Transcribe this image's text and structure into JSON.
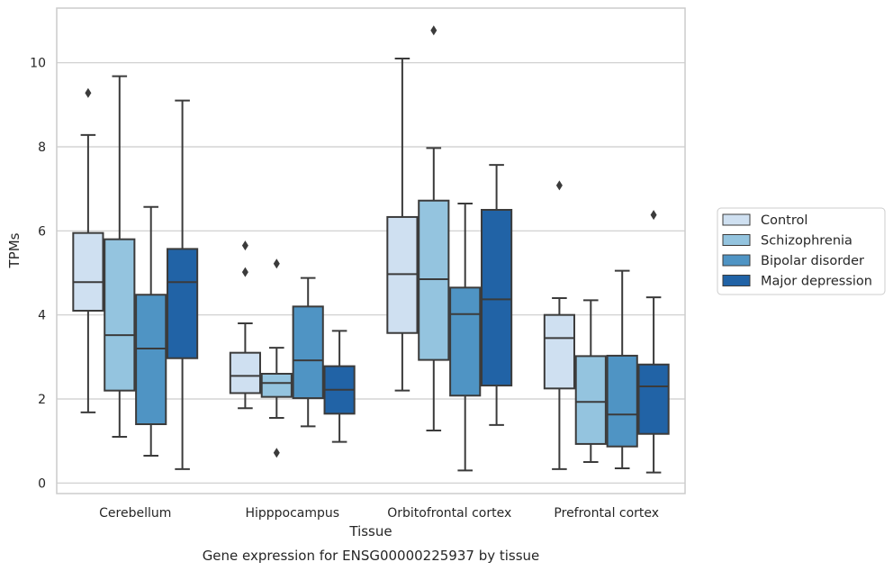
{
  "chart_data": {
    "type": "boxplot",
    "title": "",
    "caption": "Gene expression for ENSG00000225937 by tissue",
    "xlabel": "Tissue",
    "ylabel": "TPMs",
    "ylim": [
      -0.25,
      11.3
    ],
    "yticks": [
      0,
      2,
      4,
      6,
      8,
      10
    ],
    "grid": "horizontal",
    "legend_placement": "right",
    "categories": [
      "Cerebellum",
      "Hipppocampus",
      "Orbitofrontal cortex",
      "Prefrontal cortex"
    ],
    "series": [
      {
        "name": "Control",
        "color": "#cfe0f1",
        "boxes": [
          {
            "whisker_low": 1.68,
            "q1": 4.1,
            "median": 4.78,
            "q3": 5.95,
            "whisker_high": 8.28,
            "outliers": [
              9.28
            ]
          },
          {
            "whisker_low": 1.78,
            "q1": 2.14,
            "median": 2.55,
            "q3": 3.1,
            "whisker_high": 3.8,
            "outliers": [
              5.02,
              5.65
            ]
          },
          {
            "whisker_low": 2.2,
            "q1": 3.57,
            "median": 4.97,
            "q3": 6.33,
            "whisker_high": 10.1,
            "outliers": []
          },
          {
            "whisker_low": 0.33,
            "q1": 2.25,
            "median": 3.45,
            "q3": 4.0,
            "whisker_high": 4.4,
            "outliers": [
              7.08
            ]
          }
        ]
      },
      {
        "name": "Schizophrenia",
        "color": "#94c4df",
        "boxes": [
          {
            "whisker_low": 1.1,
            "q1": 2.2,
            "median": 3.52,
            "q3": 5.8,
            "whisker_high": 9.68,
            "outliers": []
          },
          {
            "whisker_low": 1.55,
            "q1": 2.05,
            "median": 2.38,
            "q3": 2.6,
            "whisker_high": 3.22,
            "outliers": [
              0.72,
              5.22
            ]
          },
          {
            "whisker_low": 1.25,
            "q1": 2.93,
            "median": 4.85,
            "q3": 6.72,
            "whisker_high": 7.97,
            "outliers": [
              10.77
            ]
          },
          {
            "whisker_low": 0.5,
            "q1": 0.93,
            "median": 1.93,
            "q3": 3.02,
            "whisker_high": 4.35,
            "outliers": []
          }
        ]
      },
      {
        "name": "Bipolar disorder",
        "color": "#4f94c4",
        "boxes": [
          {
            "whisker_low": 0.65,
            "q1": 1.4,
            "median": 3.2,
            "q3": 4.48,
            "whisker_high": 6.57,
            "outliers": []
          },
          {
            "whisker_low": 1.35,
            "q1": 2.02,
            "median": 2.92,
            "q3": 4.2,
            "whisker_high": 4.88,
            "outliers": []
          },
          {
            "whisker_low": 0.3,
            "q1": 2.08,
            "median": 4.02,
            "q3": 4.65,
            "whisker_high": 6.65,
            "outliers": []
          },
          {
            "whisker_low": 0.35,
            "q1": 0.87,
            "median": 1.63,
            "q3": 3.03,
            "whisker_high": 5.05,
            "outliers": []
          }
        ]
      },
      {
        "name": "Major depression",
        "color": "#2163a6",
        "boxes": [
          {
            "whisker_low": 0.33,
            "q1": 2.97,
            "median": 4.78,
            "q3": 5.57,
            "whisker_high": 9.1,
            "outliers": []
          },
          {
            "whisker_low": 0.98,
            "q1": 1.65,
            "median": 2.22,
            "q3": 2.78,
            "whisker_high": 3.62,
            "outliers": []
          },
          {
            "whisker_low": 1.38,
            "q1": 2.32,
            "median": 4.37,
            "q3": 6.5,
            "whisker_high": 7.57,
            "outliers": []
          },
          {
            "whisker_low": 0.25,
            "q1": 1.17,
            "median": 2.3,
            "q3": 2.82,
            "whisker_high": 4.42,
            "outliers": [
              6.38
            ]
          }
        ]
      }
    ]
  }
}
